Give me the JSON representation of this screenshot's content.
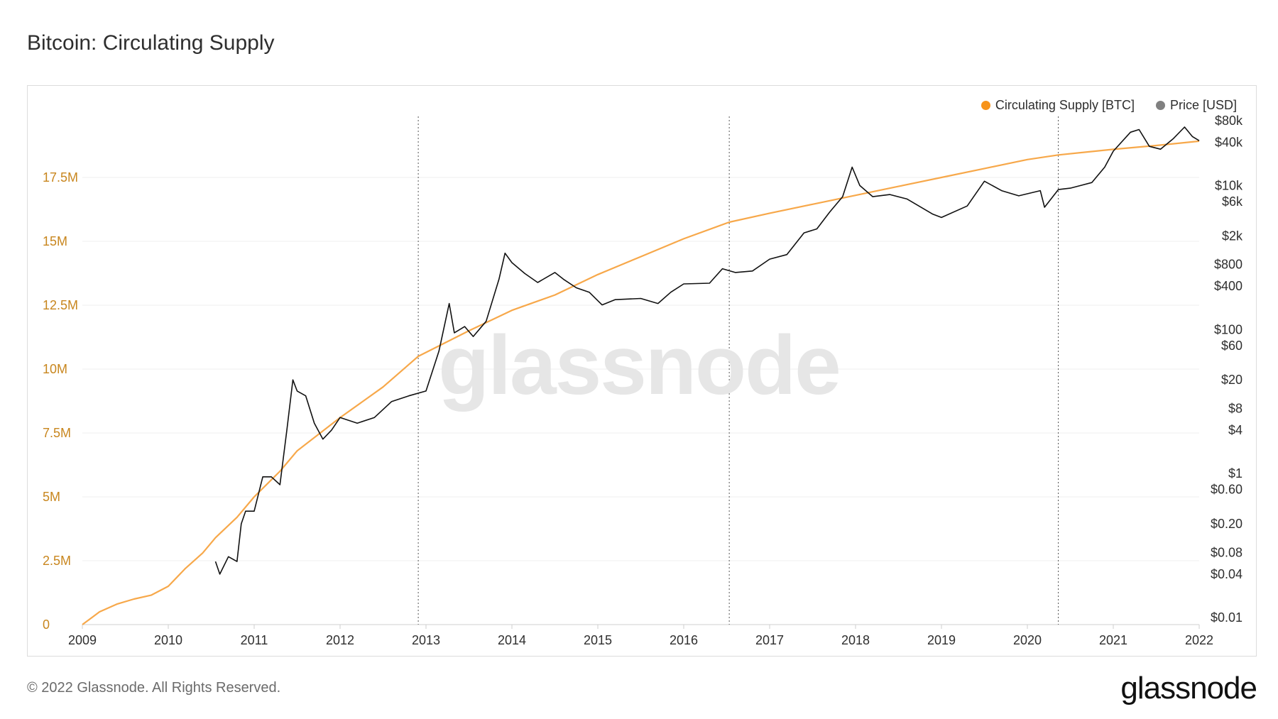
{
  "title": "Bitcoin: Circulating Supply",
  "footer": "© 2022 Glassnode. All Rights Reserved.",
  "brand": "glassnode",
  "watermark": "glassnode",
  "legend": [
    {
      "label": "Circulating Supply [BTC]",
      "color": "#f7931a"
    },
    {
      "label": "Price [USD]",
      "color": "#808080"
    }
  ],
  "chart_data": {
    "type": "line",
    "x_ticks": [
      "2009",
      "2010",
      "2011",
      "2012",
      "2013",
      "2014",
      "2015",
      "2016",
      "2017",
      "2018",
      "2019",
      "2020",
      "2021",
      "2022"
    ],
    "y_left_ticks": [
      {
        "value": 0,
        "label": "0"
      },
      {
        "value": 2500000,
        "label": "2.5M"
      },
      {
        "value": 5000000,
        "label": "5M"
      },
      {
        "value": 7500000,
        "label": "7.5M"
      },
      {
        "value": 10000000,
        "label": "10M"
      },
      {
        "value": 12500000,
        "label": "12.5M"
      },
      {
        "value": 15000000,
        "label": "15M"
      },
      {
        "value": 17500000,
        "label": "17.5M"
      }
    ],
    "y_right_ticks": [
      {
        "value": 80000,
        "label": "$80k"
      },
      {
        "value": 40000,
        "label": "$40k"
      },
      {
        "value": 10000,
        "label": "$10k"
      },
      {
        "value": 6000,
        "label": "$6k"
      },
      {
        "value": 2000,
        "label": "$2k"
      },
      {
        "value": 800,
        "label": "$800"
      },
      {
        "value": 400,
        "label": "$400"
      },
      {
        "value": 100,
        "label": "$100"
      },
      {
        "value": 60,
        "label": "$60"
      },
      {
        "value": 20,
        "label": "$20"
      },
      {
        "value": 8,
        "label": "$8"
      },
      {
        "value": 4,
        "label": "$4"
      },
      {
        "value": 1,
        "label": "$1"
      },
      {
        "value": 0.6,
        "label": "$0.60"
      },
      {
        "value": 0.2,
        "label": "$0.20"
      },
      {
        "value": 0.08,
        "label": "$0.08"
      },
      {
        "value": 0.04,
        "label": "$0.04"
      },
      {
        "value": 0.01,
        "label": "$0.01"
      }
    ],
    "y_left_range": [
      0,
      20000000
    ],
    "halving_dates": [
      2012.91,
      2016.53,
      2020.36
    ],
    "grid": true,
    "legend_position": "top-right",
    "series": [
      {
        "name": "Circulating Supply [BTC]",
        "axis": "left",
        "color": "#f7931a",
        "points": [
          [
            2009.0,
            0
          ],
          [
            2009.2,
            500000
          ],
          [
            2009.4,
            800000
          ],
          [
            2009.6,
            1000000
          ],
          [
            2009.8,
            1150000
          ],
          [
            2010.0,
            1500000
          ],
          [
            2010.2,
            2200000
          ],
          [
            2010.4,
            2800000
          ],
          [
            2010.55,
            3400000
          ],
          [
            2010.8,
            4200000
          ],
          [
            2011.0,
            5000000
          ],
          [
            2011.3,
            6000000
          ],
          [
            2011.5,
            6800000
          ],
          [
            2012.0,
            8100000
          ],
          [
            2012.5,
            9300000
          ],
          [
            2012.91,
            10500000
          ],
          [
            2013.5,
            11500000
          ],
          [
            2014.0,
            12300000
          ],
          [
            2014.5,
            12900000
          ],
          [
            2015.0,
            13700000
          ],
          [
            2015.5,
            14400000
          ],
          [
            2016.0,
            15100000
          ],
          [
            2016.53,
            15750000
          ],
          [
            2017.0,
            16100000
          ],
          [
            2017.5,
            16450000
          ],
          [
            2018.0,
            16800000
          ],
          [
            2018.5,
            17150000
          ],
          [
            2019.0,
            17500000
          ],
          [
            2019.5,
            17850000
          ],
          [
            2020.0,
            18200000
          ],
          [
            2020.36,
            18380000
          ],
          [
            2021.0,
            18600000
          ],
          [
            2021.5,
            18750000
          ],
          [
            2022.0,
            18920000
          ]
        ]
      },
      {
        "name": "Price [USD]",
        "axis": "right",
        "color": "#000000",
        "points": [
          [
            2010.55,
            0.06
          ],
          [
            2010.6,
            0.04
          ],
          [
            2010.7,
            0.07
          ],
          [
            2010.8,
            0.06
          ],
          [
            2010.85,
            0.2
          ],
          [
            2010.9,
            0.3
          ],
          [
            2011.0,
            0.3
          ],
          [
            2011.1,
            0.9
          ],
          [
            2011.2,
            0.9
          ],
          [
            2011.3,
            0.7
          ],
          [
            2011.38,
            4
          ],
          [
            2011.45,
            20
          ],
          [
            2011.5,
            14
          ],
          [
            2011.6,
            12
          ],
          [
            2011.7,
            5
          ],
          [
            2011.8,
            3
          ],
          [
            2011.9,
            4
          ],
          [
            2012.0,
            6
          ],
          [
            2012.2,
            5
          ],
          [
            2012.4,
            6
          ],
          [
            2012.6,
            10
          ],
          [
            2012.8,
            12
          ],
          [
            2013.0,
            14
          ],
          [
            2013.15,
            50
          ],
          [
            2013.27,
            230
          ],
          [
            2013.33,
            90
          ],
          [
            2013.45,
            110
          ],
          [
            2013.55,
            80
          ],
          [
            2013.7,
            130
          ],
          [
            2013.85,
            500
          ],
          [
            2013.92,
            1150
          ],
          [
            2014.0,
            850
          ],
          [
            2014.15,
            600
          ],
          [
            2014.3,
            450
          ],
          [
            2014.5,
            620
          ],
          [
            2014.6,
            500
          ],
          [
            2014.75,
            380
          ],
          [
            2014.9,
            330
          ],
          [
            2015.05,
            220
          ],
          [
            2015.2,
            260
          ],
          [
            2015.5,
            270
          ],
          [
            2015.7,
            230
          ],
          [
            2015.85,
            330
          ],
          [
            2016.0,
            430
          ],
          [
            2016.3,
            440
          ],
          [
            2016.45,
            700
          ],
          [
            2016.6,
            620
          ],
          [
            2016.8,
            650
          ],
          [
            2017.0,
            950
          ],
          [
            2017.2,
            1100
          ],
          [
            2017.4,
            2200
          ],
          [
            2017.55,
            2500
          ],
          [
            2017.7,
            4300
          ],
          [
            2017.85,
            7000
          ],
          [
            2017.96,
            18000
          ],
          [
            2018.05,
            10000
          ],
          [
            2018.2,
            7000
          ],
          [
            2018.4,
            7500
          ],
          [
            2018.6,
            6500
          ],
          [
            2018.9,
            4000
          ],
          [
            2019.0,
            3600
          ],
          [
            2019.3,
            5200
          ],
          [
            2019.5,
            11500
          ],
          [
            2019.7,
            8500
          ],
          [
            2019.9,
            7200
          ],
          [
            2020.15,
            8500
          ],
          [
            2020.2,
            5000
          ],
          [
            2020.36,
            8800
          ],
          [
            2020.5,
            9200
          ],
          [
            2020.75,
            11000
          ],
          [
            2020.9,
            18000
          ],
          [
            2021.0,
            30000
          ],
          [
            2021.2,
            55000
          ],
          [
            2021.3,
            60000
          ],
          [
            2021.42,
            35000
          ],
          [
            2021.55,
            32000
          ],
          [
            2021.7,
            45000
          ],
          [
            2021.83,
            65000
          ],
          [
            2021.92,
            48000
          ],
          [
            2022.0,
            42000
          ]
        ]
      }
    ]
  }
}
